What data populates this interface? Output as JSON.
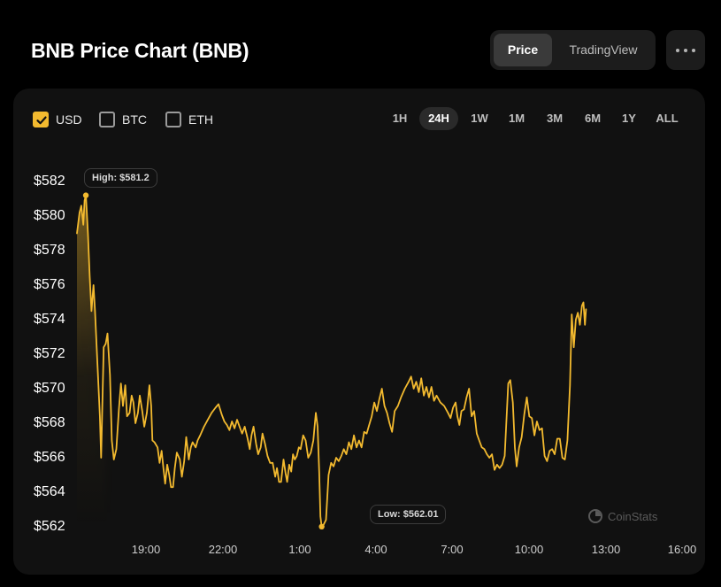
{
  "header": {
    "title": "BNB Price Chart (BNB)",
    "tabs": [
      "Price",
      "TradingView"
    ],
    "active_tab": "Price"
  },
  "currencies": [
    {
      "label": "USD",
      "checked": true
    },
    {
      "label": "BTC",
      "checked": false
    },
    {
      "label": "ETH",
      "checked": false
    }
  ],
  "ranges": [
    "1H",
    "24H",
    "1W",
    "1M",
    "3M",
    "6M",
    "1Y",
    "ALL"
  ],
  "active_range": "24H",
  "watermark": "CoinStats",
  "colors": {
    "line": "#f3ba2f",
    "background": "#111111",
    "active_checkbox": "#f3ba2f"
  },
  "tooltips": {
    "high": "High: $581.2",
    "low": "Low: $562.01"
  },
  "chart_data": {
    "type": "line",
    "x_tick_labels": [
      "19:00",
      "22:00",
      "1:00",
      "4:00",
      "7:00",
      "10:00",
      "13:00",
      "16:00"
    ],
    "y_tick_labels": [
      "$582",
      "$580",
      "$578",
      "$576",
      "$574",
      "$572",
      "$570",
      "$568",
      "$566",
      "$564",
      "$562"
    ],
    "ylim": [
      562,
      582
    ],
    "x_range_hours": [
      17.15,
      41.17
    ],
    "high": 581.2,
    "low": 562.01,
    "series": [
      {
        "points": [
          [
            17.15,
            579.0
          ],
          [
            17.25,
            580.2
          ],
          [
            17.32,
            580.6
          ],
          [
            17.4,
            579.5
          ],
          [
            17.45,
            580.9
          ],
          [
            17.5,
            581.2
          ],
          [
            17.58,
            579.0
          ],
          [
            17.65,
            576.5
          ],
          [
            17.72,
            574.5
          ],
          [
            17.8,
            576.0
          ],
          [
            17.86,
            574.5
          ],
          [
            17.95,
            571.6
          ],
          [
            18.05,
            568.4
          ],
          [
            18.1,
            566.0
          ],
          [
            18.2,
            572.4
          ],
          [
            18.28,
            572.6
          ],
          [
            18.35,
            573.2
          ],
          [
            18.45,
            570.8
          ],
          [
            18.52,
            567.0
          ],
          [
            18.6,
            565.9
          ],
          [
            18.7,
            566.5
          ],
          [
            18.8,
            568.8
          ],
          [
            18.88,
            570.3
          ],
          [
            18.96,
            569.0
          ],
          [
            19.05,
            570.2
          ],
          [
            19.12,
            568.4
          ],
          [
            19.22,
            568.6
          ],
          [
            19.3,
            569.6
          ],
          [
            19.37,
            569.2
          ],
          [
            19.45,
            568.0
          ],
          [
            19.55,
            568.6
          ],
          [
            19.62,
            569.6
          ],
          [
            19.72,
            568.7
          ],
          [
            19.8,
            567.8
          ],
          [
            19.9,
            568.6
          ],
          [
            20.0,
            570.2
          ],
          [
            20.07,
            569.0
          ],
          [
            20.12,
            567.0
          ],
          [
            20.2,
            566.9
          ],
          [
            20.32,
            566.6
          ],
          [
            20.4,
            565.7
          ],
          [
            20.48,
            566.4
          ],
          [
            20.55,
            565.4
          ],
          [
            20.62,
            564.5
          ],
          [
            20.7,
            565.6
          ],
          [
            20.78,
            565.0
          ],
          [
            20.85,
            564.3
          ],
          [
            20.93,
            564.3
          ],
          [
            21.0,
            565.4
          ],
          [
            21.08,
            566.3
          ],
          [
            21.2,
            565.9
          ],
          [
            21.28,
            564.9
          ],
          [
            21.37,
            565.8
          ],
          [
            21.45,
            567.2
          ],
          [
            21.55,
            565.9
          ],
          [
            21.63,
            566.6
          ],
          [
            21.7,
            566.9
          ],
          [
            21.82,
            566.6
          ],
          [
            21.9,
            567.0
          ],
          [
            22.0,
            567.3
          ],
          [
            22.15,
            567.8
          ],
          [
            22.3,
            568.2
          ],
          [
            22.45,
            568.6
          ],
          [
            22.6,
            568.9
          ],
          [
            22.72,
            569.1
          ],
          [
            22.85,
            568.5
          ],
          [
            22.95,
            568.1
          ],
          [
            23.05,
            567.9
          ],
          [
            23.15,
            567.6
          ],
          [
            23.25,
            568.1
          ],
          [
            23.35,
            567.7
          ],
          [
            23.45,
            568.2
          ],
          [
            23.55,
            567.8
          ],
          [
            23.65,
            567.4
          ],
          [
            23.75,
            567.8
          ],
          [
            23.85,
            567.2
          ],
          [
            23.95,
            566.5
          ],
          [
            24.02,
            567.3
          ],
          [
            24.1,
            567.8
          ],
          [
            24.2,
            566.8
          ],
          [
            24.28,
            566.2
          ],
          [
            24.38,
            566.6
          ],
          [
            24.45,
            567.4
          ],
          [
            24.55,
            566.8
          ],
          [
            24.65,
            566.1
          ],
          [
            24.75,
            565.7
          ],
          [
            24.85,
            565.7
          ],
          [
            24.95,
            564.9
          ],
          [
            25.02,
            565.4
          ],
          [
            25.1,
            564.6
          ],
          [
            25.18,
            564.6
          ],
          [
            25.28,
            565.9
          ],
          [
            25.36,
            565.1
          ],
          [
            25.42,
            564.6
          ],
          [
            25.5,
            565.6
          ],
          [
            25.58,
            565.2
          ],
          [
            25.65,
            566.2
          ],
          [
            25.72,
            565.9
          ],
          [
            25.8,
            566.1
          ],
          [
            25.88,
            566.6
          ],
          [
            25.95,
            566.5
          ],
          [
            26.05,
            567.3
          ],
          [
            26.15,
            567.0
          ],
          [
            26.25,
            566.0
          ],
          [
            26.35,
            566.3
          ],
          [
            26.45,
            567.0
          ],
          [
            26.55,
            568.6
          ],
          [
            26.62,
            567.8
          ],
          [
            26.68,
            565.2
          ],
          [
            26.73,
            562.6
          ],
          [
            26.78,
            562.01
          ],
          [
            26.85,
            562.1
          ],
          [
            26.95,
            562.4
          ],
          [
            27.05,
            565.0
          ],
          [
            27.15,
            565.7
          ],
          [
            27.25,
            565.5
          ],
          [
            27.35,
            566.0
          ],
          [
            27.45,
            565.8
          ],
          [
            27.55,
            566.1
          ],
          [
            27.65,
            566.5
          ],
          [
            27.75,
            566.2
          ],
          [
            27.85,
            566.9
          ],
          [
            27.95,
            566.5
          ],
          [
            28.05,
            567.3
          ],
          [
            28.15,
            566.6
          ],
          [
            28.25,
            567.0
          ],
          [
            28.35,
            566.6
          ],
          [
            28.45,
            567.5
          ],
          [
            28.55,
            567.4
          ],
          [
            28.65,
            567.9
          ],
          [
            28.75,
            568.4
          ],
          [
            28.85,
            569.2
          ],
          [
            28.95,
            568.7
          ],
          [
            29.05,
            569.4
          ],
          [
            29.15,
            570.0
          ],
          [
            29.25,
            569.0
          ],
          [
            29.35,
            568.6
          ],
          [
            29.45,
            568.0
          ],
          [
            29.55,
            567.5
          ],
          [
            29.65,
            568.7
          ],
          [
            29.78,
            569.0
          ],
          [
            29.9,
            569.5
          ],
          [
            30.05,
            570.0
          ],
          [
            30.2,
            570.4
          ],
          [
            30.3,
            570.7
          ],
          [
            30.4,
            570.0
          ],
          [
            30.5,
            570.4
          ],
          [
            30.6,
            569.8
          ],
          [
            30.7,
            570.6
          ],
          [
            30.8,
            569.6
          ],
          [
            30.9,
            570.1
          ],
          [
            31.0,
            569.5
          ],
          [
            31.1,
            570.1
          ],
          [
            31.2,
            569.3
          ],
          [
            31.3,
            569.6
          ],
          [
            31.45,
            569.2
          ],
          [
            31.6,
            569.0
          ],
          [
            31.75,
            568.6
          ],
          [
            31.85,
            568.3
          ],
          [
            31.95,
            568.9
          ],
          [
            32.05,
            569.2
          ],
          [
            32.12,
            568.4
          ],
          [
            32.2,
            567.9
          ],
          [
            32.28,
            568.7
          ],
          [
            32.38,
            568.8
          ],
          [
            32.48,
            569.5
          ],
          [
            32.58,
            570.0
          ],
          [
            32.68,
            568.4
          ],
          [
            32.78,
            568.7
          ],
          [
            32.88,
            567.4
          ],
          [
            32.98,
            567.0
          ],
          [
            33.08,
            566.6
          ],
          [
            33.18,
            566.5
          ],
          [
            33.28,
            566.2
          ],
          [
            33.38,
            566.0
          ],
          [
            33.48,
            566.2
          ],
          [
            33.58,
            565.3
          ],
          [
            33.68,
            565.6
          ],
          [
            33.78,
            565.4
          ],
          [
            33.88,
            565.6
          ],
          [
            33.98,
            566.1
          ],
          [
            34.05,
            568.2
          ],
          [
            34.12,
            570.3
          ],
          [
            34.2,
            570.5
          ],
          [
            34.3,
            569.2
          ],
          [
            34.38,
            566.6
          ],
          [
            34.45,
            565.5
          ],
          [
            34.55,
            566.6
          ],
          [
            34.65,
            567.2
          ],
          [
            34.75,
            568.5
          ],
          [
            34.85,
            569.5
          ],
          [
            34.95,
            568.4
          ],
          [
            35.05,
            568.3
          ],
          [
            35.15,
            567.3
          ],
          [
            35.25,
            568.1
          ],
          [
            35.35,
            567.6
          ],
          [
            35.45,
            567.7
          ],
          [
            35.55,
            566.1
          ],
          [
            35.65,
            565.8
          ],
          [
            35.75,
            566.4
          ],
          [
            35.85,
            566.5
          ],
          [
            35.95,
            566.2
          ],
          [
            36.05,
            567.1
          ],
          [
            36.15,
            567.1
          ],
          [
            36.25,
            566.0
          ],
          [
            36.35,
            565.9
          ],
          [
            36.45,
            567.0
          ],
          [
            36.55,
            570.2
          ],
          [
            36.62,
            574.3
          ],
          [
            36.7,
            572.4
          ],
          [
            36.78,
            574.0
          ],
          [
            36.86,
            574.4
          ],
          [
            36.94,
            573.7
          ],
          [
            37.02,
            574.8
          ],
          [
            37.08,
            575.0
          ],
          [
            37.14,
            573.7
          ],
          [
            37.18,
            574.6
          ]
        ]
      }
    ]
  }
}
